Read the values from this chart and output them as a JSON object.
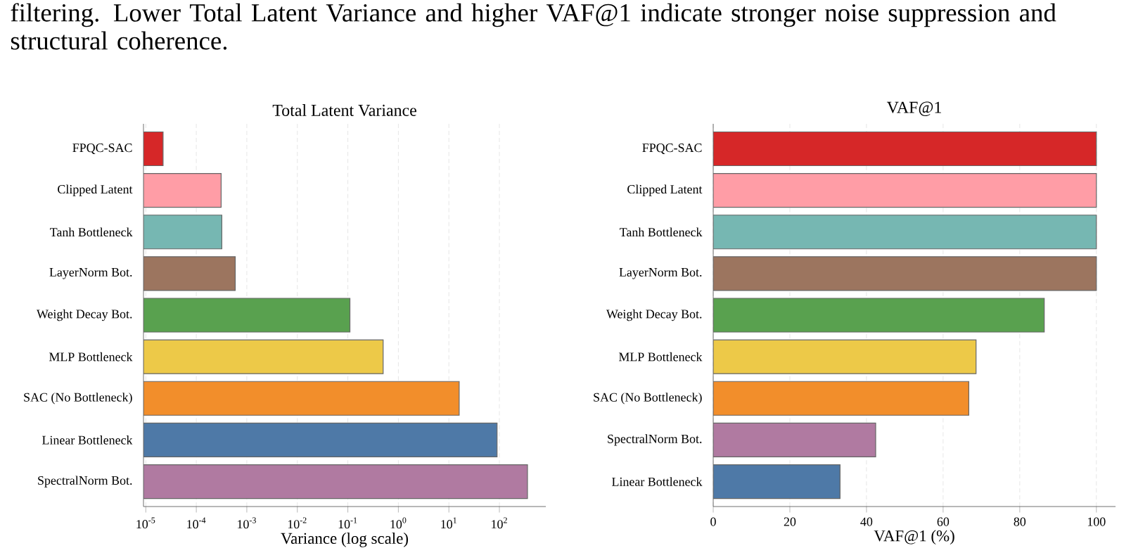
{
  "chart_data": [
    {
      "type": "bar",
      "orientation": "horizontal",
      "title": "Total Latent Variance",
      "xlabel": "Variance (log scale)",
      "annotations": [
        "filtering. Lower Total Latent Variance and higher VAF@1 indicate stronger noise suppression and structural coherence."
      ],
      "categories": [
        "FPQC-SAC",
        "Clipped Latent",
        "Tanh Bottleneck",
        "LayerNorm Bot.",
        "Weight Decay Bot.",
        "MLP Bottleneck",
        "SAC (No Bottleneck)",
        "Linear Bottleneck",
        "SpectralNorm Bot."
      ],
      "values": [
        2.2e-05,
        0.00031,
        0.00032,
        0.00059,
        0.11,
        0.5,
        16,
        90,
        360
      ],
      "colors": [
        "#d62728",
        "#ff9da6",
        "#76b7b2",
        "#9c755f",
        "#59a14f",
        "#edc948",
        "#f28e2b",
        "#4e79a7",
        "#b07aa1"
      ],
      "log": "x",
      "xlim": [
        9e-06,
        830
      ],
      "xticks": [
        {
          "value": 1e-05,
          "label": "10$^{-5}$"
        },
        {
          "value": 0.0001,
          "label": "10$^{-4}$"
        },
        {
          "value": 0.001,
          "label": "10$^{-3}$"
        },
        {
          "value": 0.01,
          "label": "10$^{-2}$"
        },
        {
          "value": 0.1,
          "label": "10$^{-1}$"
        },
        {
          "value": 1,
          "label": "10$^{0}$"
        },
        {
          "value": 10,
          "label": "10$^{1}$"
        },
        {
          "value": 100,
          "label": "10$^{2}$"
        }
      ],
      "grid": "x"
    },
    {
      "type": "bar",
      "orientation": "horizontal",
      "title": "VAF@1",
      "xlabel": "VAF@1 (%)",
      "categories": [
        "FPQC-SAC",
        "Clipped Latent",
        "Tanh Bottleneck",
        "LayerNorm Bot.",
        "Weight Decay Bot.",
        "MLP Bottleneck",
        "SAC (No Bottleneck)",
        "SpectralNorm Bot.",
        "Linear Bottleneck"
      ],
      "values": [
        100,
        100,
        100,
        100,
        86.4,
        68.6,
        66.7,
        42.4,
        33.1
      ],
      "colors": [
        "#d62728",
        "#ff9da6",
        "#76b7b2",
        "#9c755f",
        "#59a14f",
        "#edc948",
        "#f28e2b",
        "#b07aa1",
        "#4e79a7"
      ],
      "xlim": [
        0,
        105
      ],
      "xticks": [
        0,
        20,
        40,
        60,
        80,
        100
      ],
      "grid": "x"
    }
  ]
}
